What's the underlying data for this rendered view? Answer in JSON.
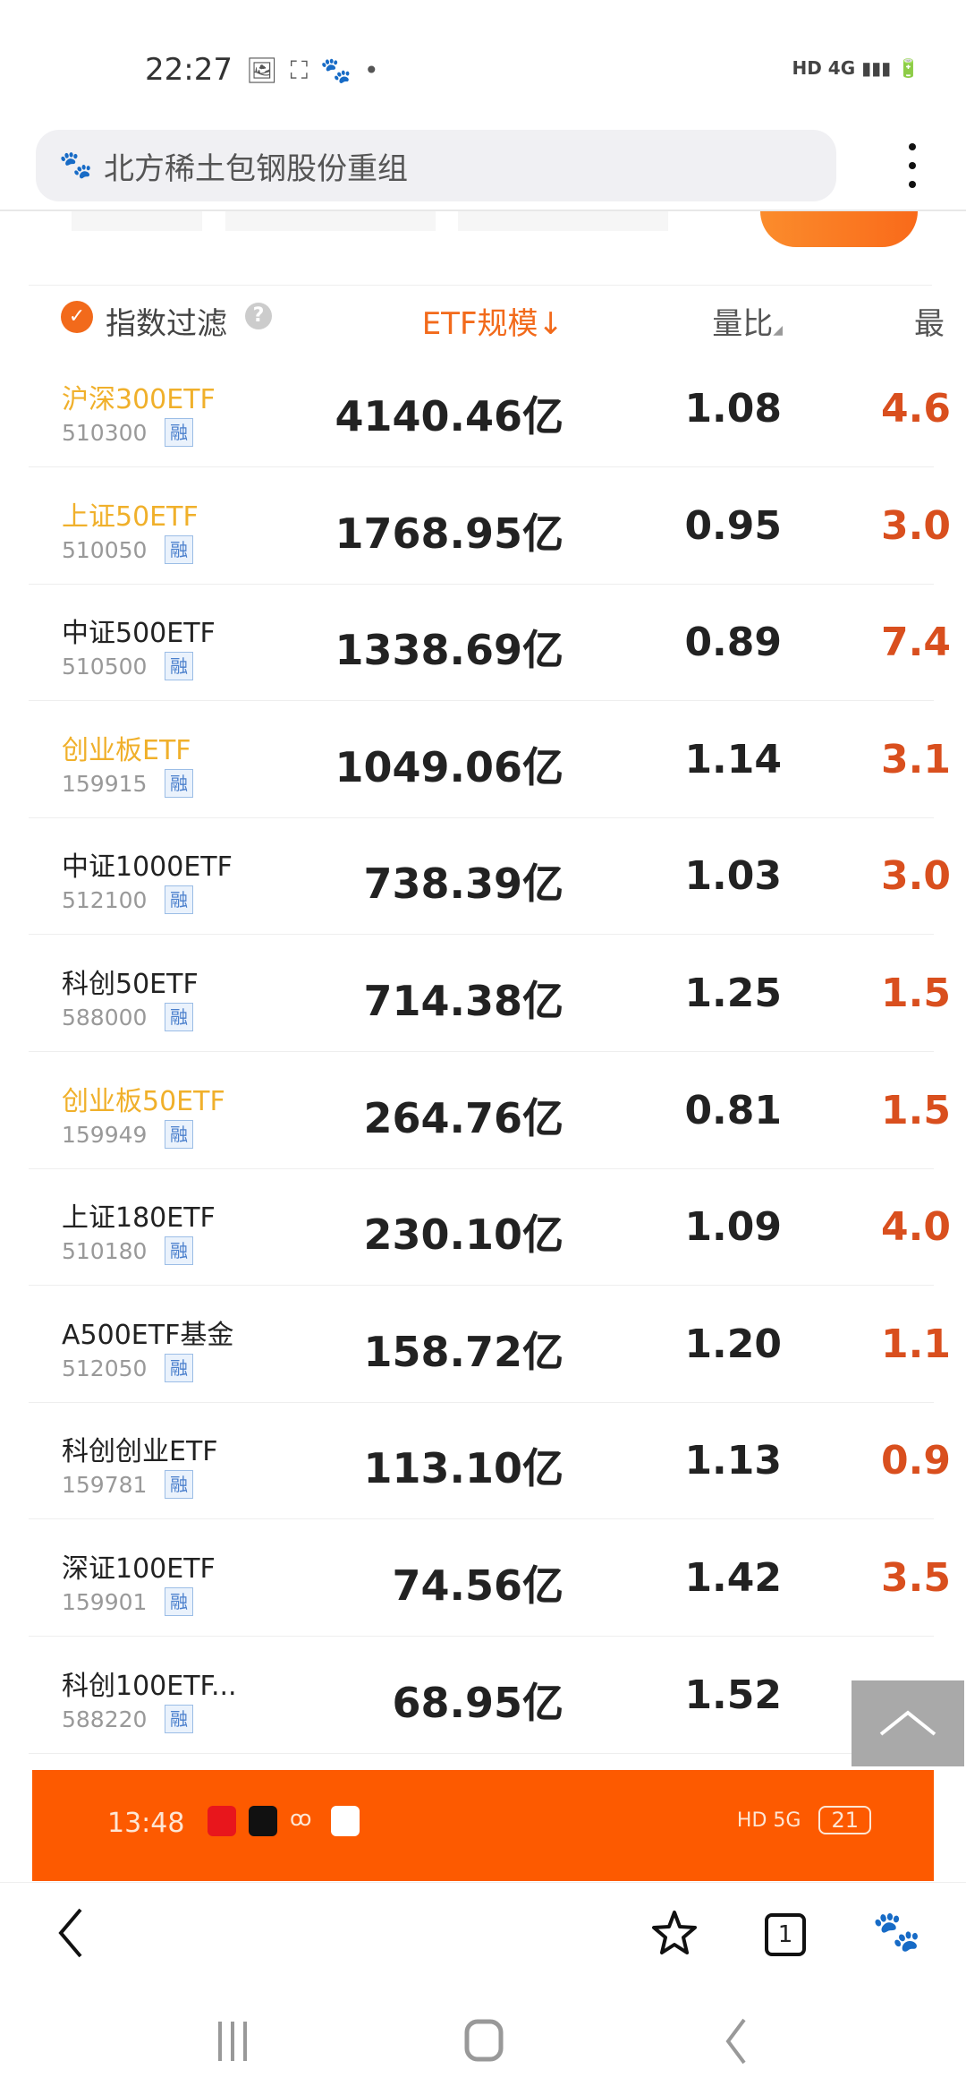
{
  "status_bar": {
    "time": "22:27",
    "network": "HD 4G",
    "icons": [
      "image-icon",
      "screen-record-icon",
      "baidu-icon",
      "dot"
    ]
  },
  "search": {
    "query": "北方稀土包钢股份重组"
  },
  "table": {
    "filter_label": "指数过滤",
    "filter_checked": true,
    "help": "?",
    "columns": [
      "ETF规模↓",
      "量比",
      "最"
    ],
    "sort_column": "ETF规模",
    "margin_badge": "融",
    "highlight_color": "#f0b02b",
    "rows": [
      {
        "name": "沪深300ETF",
        "code": "510300",
        "size": "4140.46亿",
        "ratio": "1.08",
        "last": "4.6",
        "highlight": true
      },
      {
        "name": "上证50ETF",
        "code": "510050",
        "size": "1768.95亿",
        "ratio": "0.95",
        "last": "3.0",
        "highlight": true
      },
      {
        "name": "中证500ETF",
        "code": "510500",
        "size": "1338.69亿",
        "ratio": "0.89",
        "last": "7.4",
        "highlight": false
      },
      {
        "name": "创业板ETF",
        "code": "159915",
        "size": "1049.06亿",
        "ratio": "1.14",
        "last": "3.1",
        "highlight": true
      },
      {
        "name": "中证1000ETF",
        "code": "512100",
        "size": "738.39亿",
        "ratio": "1.03",
        "last": "3.0",
        "highlight": false
      },
      {
        "name": "科创50ETF",
        "code": "588000",
        "size": "714.38亿",
        "ratio": "1.25",
        "last": "1.5",
        "highlight": false
      },
      {
        "name": "创业板50ETF",
        "code": "159949",
        "size": "264.76亿",
        "ratio": "0.81",
        "last": "1.5",
        "highlight": true
      },
      {
        "name": "上证180ETF",
        "code": "510180",
        "size": "230.10亿",
        "ratio": "1.09",
        "last": "4.0",
        "highlight": false
      },
      {
        "name": "A500ETF基金",
        "code": "512050",
        "size": "158.72亿",
        "ratio": "1.20",
        "last": "1.1",
        "highlight": false
      },
      {
        "name": "科创创业ETF",
        "code": "159781",
        "size": "113.10亿",
        "ratio": "1.13",
        "last": "0.9",
        "highlight": false
      },
      {
        "name": "深证100ETF",
        "code": "159901",
        "size": "74.56亿",
        "ratio": "1.42",
        "last": "3.5",
        "highlight": false
      },
      {
        "name": "科创100ETF...",
        "code": "588220",
        "size": "68.95亿",
        "ratio": "1.52",
        "last": "",
        "highlight": false
      }
    ]
  },
  "banner": {
    "time": "13:48",
    "network": "HD 5G",
    "battery": "21",
    "color": "#fd5a00"
  },
  "toolbar": {
    "tabs_count": "1"
  }
}
